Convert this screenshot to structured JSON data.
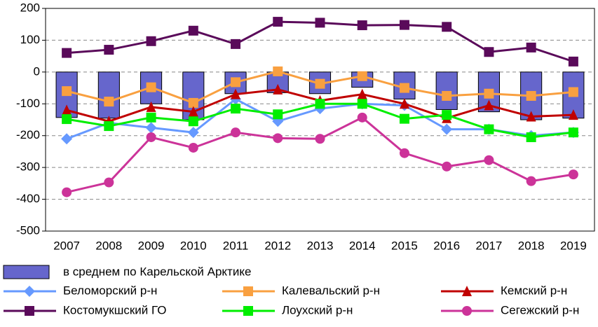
{
  "chart_data": {
    "type": "combo",
    "categories": [
      "2007",
      "2008",
      "2009",
      "2010",
      "2011",
      "2012",
      "2013",
      "2014",
      "2015",
      "2016",
      "2017",
      "2018",
      "2019"
    ],
    "ylim": [
      -500,
      200
    ],
    "yticks": [
      -500,
      -400,
      -300,
      -200,
      -100,
      0,
      100,
      200
    ],
    "grid": true,
    "series": [
      {
        "name": "в среднем по Карельской Арктике",
        "type": "bar",
        "color": "#6666cc",
        "values": [
          -143,
          -145,
          -100,
          -150,
          -68,
          -65,
          -68,
          -48,
          -85,
          -118,
          -125,
          -150,
          -145
        ]
      },
      {
        "name": "Беломорский р-н",
        "type": "line",
        "marker": "diamond",
        "color": "#6699ff",
        "values": [
          -210,
          -160,
          -175,
          -190,
          -85,
          -155,
          -115,
          -100,
          -105,
          -180,
          -180,
          -200,
          -190
        ]
      },
      {
        "name": "Калевальский р-н",
        "type": "line",
        "marker": "square",
        "color": "#f9a040",
        "values": [
          -60,
          -93,
          -48,
          -97,
          -32,
          2,
          -37,
          -13,
          -50,
          -75,
          -68,
          -75,
          -63
        ]
      },
      {
        "name": "Кемский р-н",
        "type": "line",
        "marker": "triangle",
        "color": "#c00000",
        "values": [
          -120,
          -155,
          -110,
          -125,
          -70,
          -55,
          -90,
          -70,
          -100,
          -145,
          -105,
          -140,
          -135
        ]
      },
      {
        "name": "Костомукшский ГО",
        "type": "line",
        "marker": "square",
        "color": "#5a0a5a",
        "values": [
          60,
          70,
          97,
          130,
          88,
          158,
          155,
          147,
          148,
          142,
          63,
          77,
          33
        ]
      },
      {
        "name": "Лоухский р-н",
        "type": "line",
        "marker": "square",
        "color": "#00ee00",
        "values": [
          -148,
          -170,
          -143,
          -155,
          -115,
          -133,
          -100,
          -100,
          -147,
          -135,
          -180,
          -205,
          -190
        ]
      },
      {
        "name": "Сегежский р-н",
        "type": "line",
        "marker": "circle",
        "color": "#cc3399",
        "values": [
          -378,
          -347,
          -205,
          -238,
          -190,
          -208,
          -210,
          -143,
          -255,
          -297,
          -277,
          -343,
          -322
        ]
      }
    ]
  }
}
